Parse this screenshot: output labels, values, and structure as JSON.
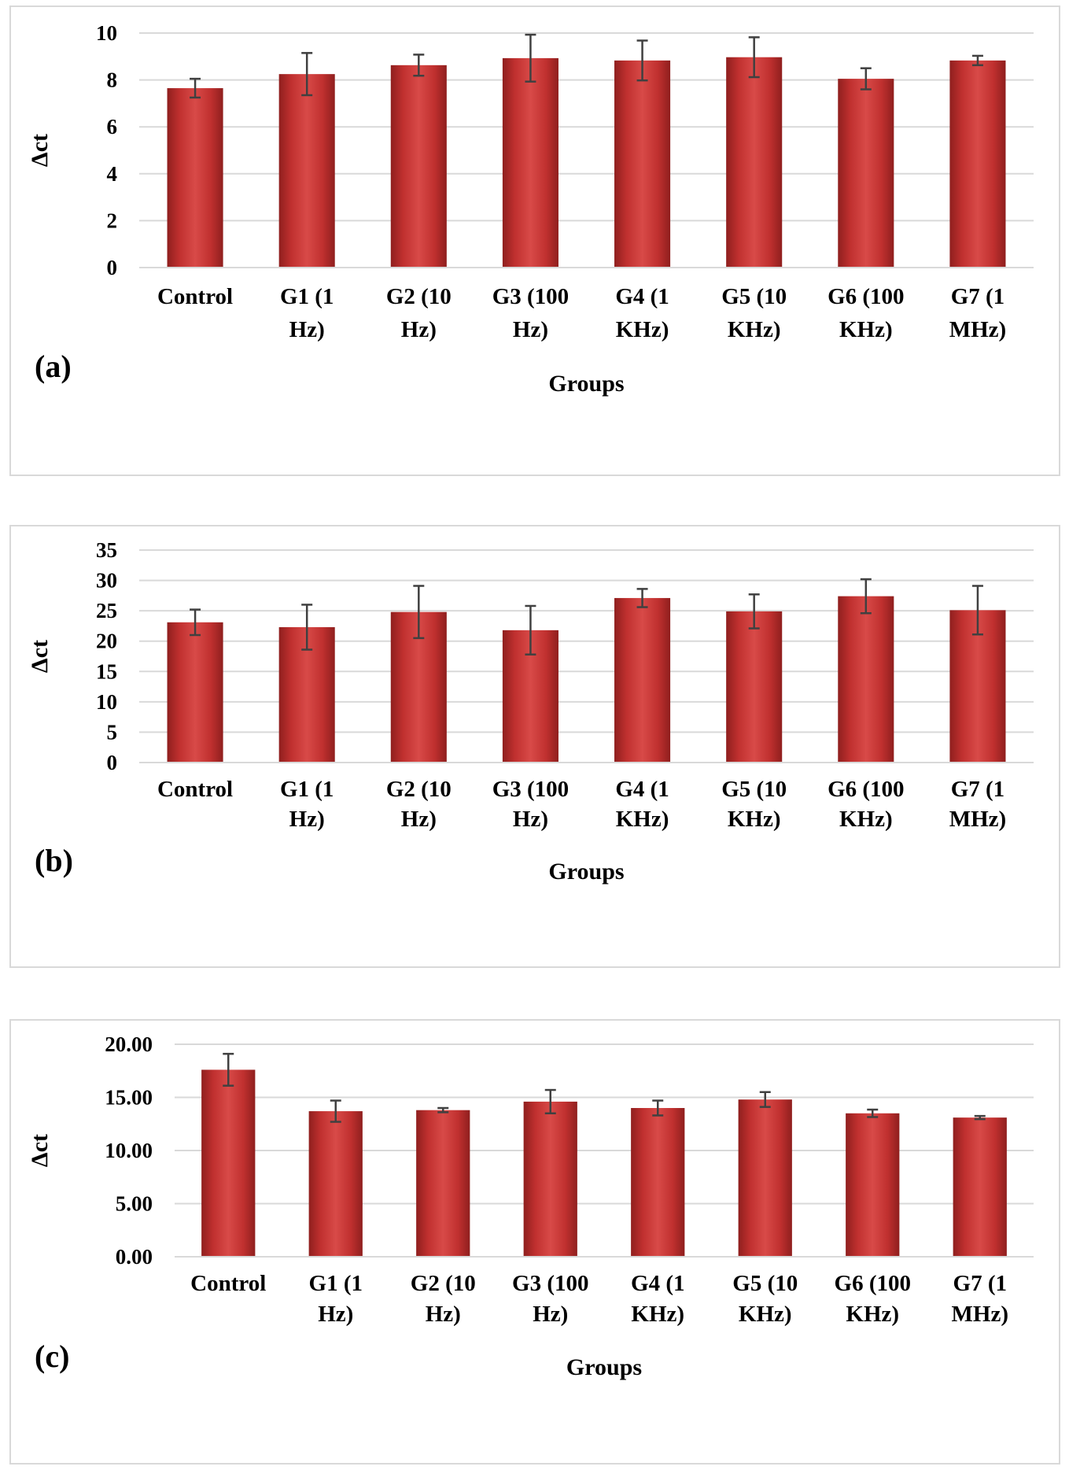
{
  "chart_data": [
    {
      "type": "bar",
      "panel_label": "(a)",
      "xlabel": "Groups",
      "ylabel": "Δct",
      "ylim": [
        0,
        10
      ],
      "yticks": [
        0,
        2,
        4,
        6,
        8,
        10
      ],
      "ytick_labels": [
        "0",
        "2",
        "4",
        "6",
        "8",
        "10"
      ],
      "grid": true,
      "categories": [
        [
          "Control"
        ],
        [
          "G1 (1",
          "Hz)"
        ],
        [
          "G2 (10",
          "Hz)"
        ],
        [
          "G3 (100",
          "Hz)"
        ],
        [
          "G4 (1",
          "KHz)"
        ],
        [
          "G5 (10",
          "KHz)"
        ],
        [
          "G6 (100",
          "KHz)"
        ],
        [
          "G7 (1",
          "MHz)"
        ]
      ],
      "values": [
        7.65,
        8.25,
        8.63,
        8.93,
        8.83,
        8.97,
        8.05,
        8.83
      ],
      "errors": [
        0.4,
        0.9,
        0.45,
        1.0,
        0.85,
        0.85,
        0.45,
        0.2
      ],
      "bar_color": "#c0302f"
    },
    {
      "type": "bar",
      "panel_label": "(b)",
      "xlabel": "Groups",
      "ylabel": "Δct",
      "ylim": [
        0,
        35
      ],
      "yticks": [
        0,
        5,
        10,
        15,
        20,
        25,
        30,
        35
      ],
      "ytick_labels": [
        "0",
        "5",
        "10",
        "15",
        "20",
        "25",
        "30",
        "35"
      ],
      "grid": true,
      "categories": [
        [
          "Control"
        ],
        [
          "G1 (1",
          "Hz)"
        ],
        [
          "G2 (10",
          "Hz)"
        ],
        [
          "G3 (100",
          "Hz)"
        ],
        [
          "G4 (1",
          "KHz)"
        ],
        [
          "G5 (10",
          "KHz)"
        ],
        [
          "G6 (100",
          "KHz)"
        ],
        [
          "G7 (1",
          "MHz)"
        ]
      ],
      "values": [
        23.1,
        22.3,
        24.8,
        21.8,
        27.1,
        24.9,
        27.4,
        25.1
      ],
      "errors": [
        2.1,
        3.7,
        4.3,
        4.0,
        1.5,
        2.8,
        2.8,
        4.0
      ],
      "bar_color": "#c0302f"
    },
    {
      "type": "bar",
      "panel_label": "(c)",
      "xlabel": "Groups",
      "ylabel": "Δct",
      "ylim": [
        0,
        20
      ],
      "yticks": [
        0,
        5,
        10,
        15,
        20
      ],
      "ytick_labels": [
        "0.00",
        "5.00",
        "10.00",
        "15.00",
        "20.00"
      ],
      "grid": true,
      "categories": [
        [
          "Control"
        ],
        [
          "G1 (1",
          "Hz)"
        ],
        [
          "G2 (10",
          "Hz)"
        ],
        [
          "G3 (100",
          "Hz)"
        ],
        [
          "G4 (1",
          "KHz)"
        ],
        [
          "G5 (10",
          "KHz)"
        ],
        [
          "G6 (100",
          "KHz)"
        ],
        [
          "G7 (1",
          "MHz)"
        ]
      ],
      "values": [
        17.6,
        13.7,
        13.8,
        14.6,
        14.0,
        14.8,
        13.5,
        13.1
      ],
      "errors": [
        1.5,
        1.0,
        0.2,
        1.1,
        0.7,
        0.7,
        0.35,
        0.15
      ],
      "bar_color": "#c0302f"
    }
  ]
}
